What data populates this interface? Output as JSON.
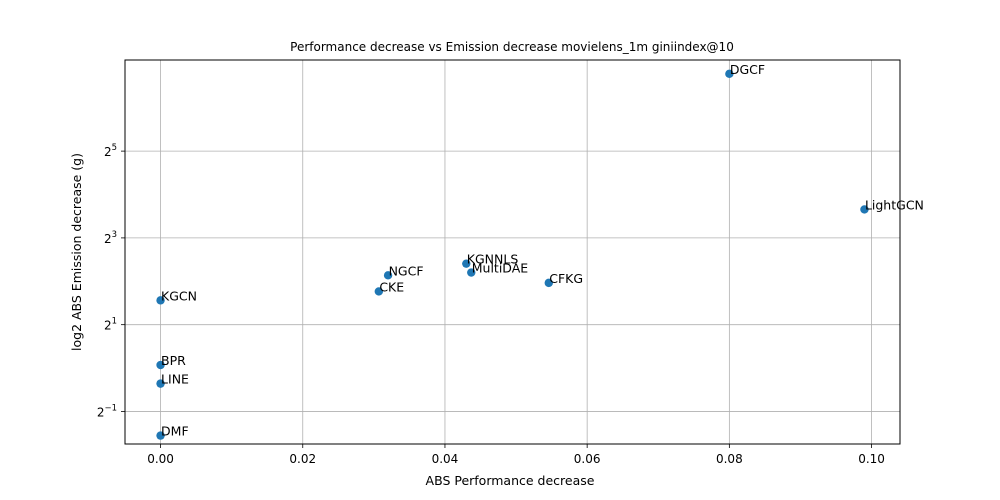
{
  "chart_data": {
    "type": "scatter",
    "title": "Performance decrease vs Emission decrease movielens_1m giniindex@10",
    "xlabel": "ABS Performance decrease",
    "ylabel": "log2 ABS Emission decrease (g)",
    "xlim": [
      -0.005,
      0.104
    ],
    "ylog2_lim": [
      -1.75,
      7.1
    ],
    "y_scale": "log2",
    "grid": true,
    "point_color": "#1f77b4",
    "x_ticks": [
      {
        "value": 0.0,
        "label": "0.00"
      },
      {
        "value": 0.02,
        "label": "0.02"
      },
      {
        "value": 0.04,
        "label": "0.04"
      },
      {
        "value": 0.06,
        "label": "0.06"
      },
      {
        "value": 0.08,
        "label": "0.08"
      },
      {
        "value": 0.1,
        "label": "0.10"
      }
    ],
    "y_ticks": [
      {
        "exponent": -1,
        "base": "2",
        "sup": "−1"
      },
      {
        "exponent": 1,
        "base": "2",
        "sup": "1"
      },
      {
        "exponent": 3,
        "base": "2",
        "sup": "3"
      },
      {
        "exponent": 5,
        "base": "2",
        "sup": "5"
      }
    ],
    "points": [
      {
        "name": "DGCF",
        "x": 0.08,
        "y": 110.0
      },
      {
        "name": "LightGCN",
        "x": 0.099,
        "y": 12.6
      },
      {
        "name": "KGNNLS",
        "x": 0.043,
        "y": 5.3
      },
      {
        "name": "MultiDAE",
        "x": 0.0437,
        "y": 4.6
      },
      {
        "name": "NGCF",
        "x": 0.032,
        "y": 4.4
      },
      {
        "name": "CFKG",
        "x": 0.0546,
        "y": 3.9
      },
      {
        "name": "CKE",
        "x": 0.0307,
        "y": 3.4
      },
      {
        "name": "KGCN",
        "x": 0.0,
        "y": 2.95
      },
      {
        "name": "BPR",
        "x": 0.0,
        "y": 1.05
      },
      {
        "name": "LINE",
        "x": 0.0,
        "y": 0.78
      },
      {
        "name": "DMF",
        "x": 0.0,
        "y": 0.34
      }
    ]
  }
}
